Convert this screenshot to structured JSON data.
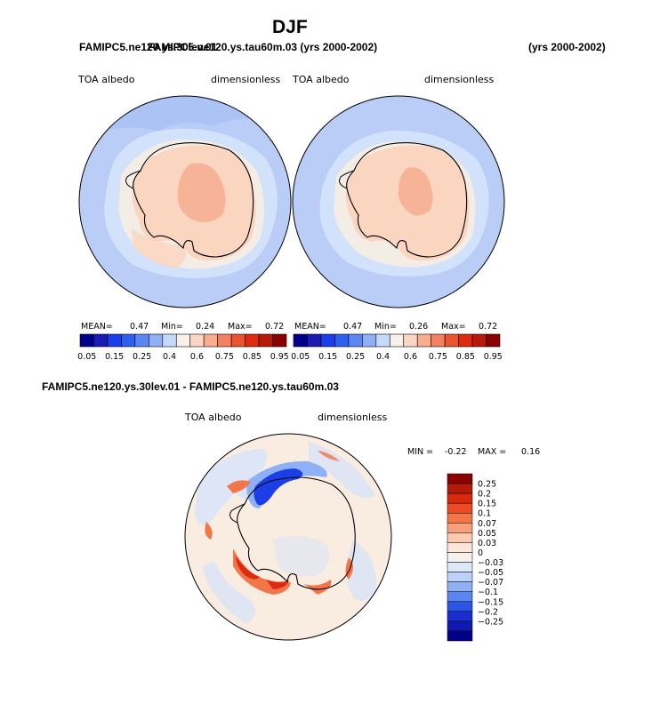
{
  "figure": {
    "title": "DJF",
    "case_label_left": "FAMIPC5.ne120.ys.30lev.01",
    "case_label_overlap": "FAMIPC5.ne120.ys.tau60m.03 (yrs 2000-2002)",
    "years_right": "(yrs 2000-2002)"
  },
  "panel_left": {
    "variable": "TOA albedo",
    "units": "dimensionless",
    "mean_label": "MEAN=",
    "mean_value": "0.47",
    "min_label": "Min=",
    "min_value": "0.24",
    "max_label": "Max=",
    "max_value": "0.72"
  },
  "panel_right": {
    "variable": "TOA albedo",
    "units": "dimensionless",
    "mean_label": "MEAN=",
    "mean_value": "0.47",
    "min_label": "Min=",
    "min_value": "0.26",
    "max_label": "Max=",
    "max_value": "0.72"
  },
  "panel_diff": {
    "title": "FAMIPC5.ne120.ys.30lev.01 - FAMIPC5.ne120.ys.tau60m.03",
    "variable": "TOA albedo",
    "units": "dimensionless",
    "min_label": "MIN =",
    "min_value": "-0.22",
    "max_label": "MAX =",
    "max_value": "0.16"
  },
  "colorbar_horizontal": {
    "colors": [
      "#00008b",
      "#1a1ab4",
      "#1c3ee6",
      "#2f5fee",
      "#5a85f2",
      "#8fb0f5",
      "#c6d9fa",
      "#f7f1ea",
      "#fcd6c4",
      "#f9ad8f",
      "#f3805e",
      "#ec5430",
      "#dc2b10",
      "#b8190a",
      "#8b0000"
    ],
    "tick_labels": [
      "0.05",
      "0.15",
      "0.25",
      "0.4",
      "0.6",
      "0.75",
      "0.85",
      "0.95"
    ]
  },
  "colorbar_vertical": {
    "colors_top_to_bottom": [
      "#8b0000",
      "#b31a0a",
      "#d9290f",
      "#ec4b25",
      "#f37649",
      "#f9a07a",
      "#fcc9b1",
      "#fbe6d8",
      "#f5f1ed",
      "#dde8fb",
      "#bdd2fa",
      "#8eb0f5",
      "#5b85f0",
      "#2a55e8",
      "#1a2ed0",
      "#0f1ab0",
      "#00008b"
    ],
    "tick_labels": [
      "0.25",
      "0.2",
      "0.15",
      "0.1",
      "0.07",
      "0.05",
      "0.03",
      "0",
      "-0.03",
      "-0.05",
      "-0.07",
      "-0.1",
      "-0.15",
      "-0.2",
      "-0.25"
    ]
  },
  "map_colors": {
    "ocean": "#b9cdf7",
    "ocean_light": "#d3e2fb",
    "ocean_mid": "#9fbaf4",
    "pale": "#f4ede6",
    "ice": "#fad5c0",
    "ice_high": "#f6b397",
    "coast": "#000000",
    "diff_base": "#f9ece1",
    "diff_pos": "#f37649",
    "diff_pos_strong": "#dc2b10",
    "diff_neg": "#8eb0f5",
    "diff_neg_strong": "#1c3ee6",
    "diff_neg_light": "#d6e3fb"
  }
}
